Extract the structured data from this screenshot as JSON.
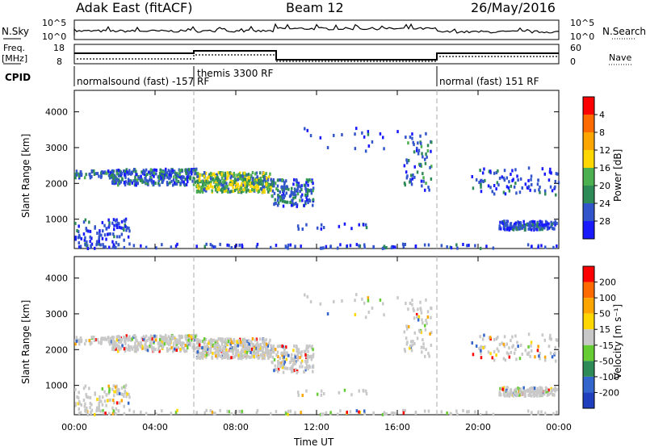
{
  "header": {
    "title": "Adak East (fitACF)",
    "beam": "Beam 12",
    "date": "26/May/2016"
  },
  "sky_panel": {
    "left_label": "N.Sky",
    "right_label": "N.Search",
    "ticks_left": [
      "10^5",
      "10^0"
    ],
    "ticks_right": [
      "10^5",
      "10^0"
    ]
  },
  "freq_panel": {
    "left_label_1": "Freq.",
    "left_label_2": "[MHz]",
    "right_label": "Nave",
    "ticks_left": [
      "18",
      "8"
    ],
    "ticks_right": [
      "60",
      "0"
    ]
  },
  "cpid": {
    "label": "CPID",
    "segments": [
      {
        "name": "normalsound (fast) -157 RF",
        "start": 0,
        "end": 6
      },
      {
        "name": "themis 3300 RF",
        "start": 6,
        "end": 18
      },
      {
        "name": "normal (fast) 151 RF",
        "start": 18,
        "end": 24
      }
    ]
  },
  "time_axis": {
    "label": "Time UT",
    "ticks": [
      "00:00",
      "04:00",
      "08:00",
      "12:00",
      "16:00",
      "20:00",
      "00:00"
    ]
  },
  "chart_data": [
    {
      "type": "heatmap",
      "name": "power",
      "ylabel": "Slant Range [km]",
      "xlabel": "",
      "xlim": [
        0,
        24
      ],
      "ylim": [
        180,
        4600
      ],
      "yticks": [
        1000,
        2000,
        3000,
        4000
      ],
      "colorbar": {
        "label": "Power [dB]",
        "ticks": [
          "4",
          "8",
          "12",
          "16",
          "20",
          "24",
          "28"
        ],
        "colors": [
          "#1a1aff",
          "#3355cc",
          "#2e8b57",
          "#4caf50",
          "#ffd700",
          "#ffa500",
          "#ff6a00",
          "#ff0000"
        ]
      }
    },
    {
      "type": "heatmap",
      "name": "velocity",
      "ylabel": "Slant Range [km]",
      "xlabel": "Time UT",
      "xlim": [
        0,
        24
      ],
      "ylim": [
        180,
        4600
      ],
      "yticks": [
        1000,
        2000,
        3000,
        4000
      ],
      "colorbar": {
        "label": "Velocity [m s⁻¹]",
        "ticks": [
          "200",
          "100",
          "50",
          "15",
          "-15",
          "-50",
          "-100",
          "-200"
        ],
        "colors": [
          "#1f3fbf",
          "#3366cc",
          "#2e8b57",
          "#66cc33",
          "#c8c8c8",
          "#ffd700",
          "#ffa500",
          "#ff6a00",
          "#ff0000"
        ]
      }
    }
  ]
}
